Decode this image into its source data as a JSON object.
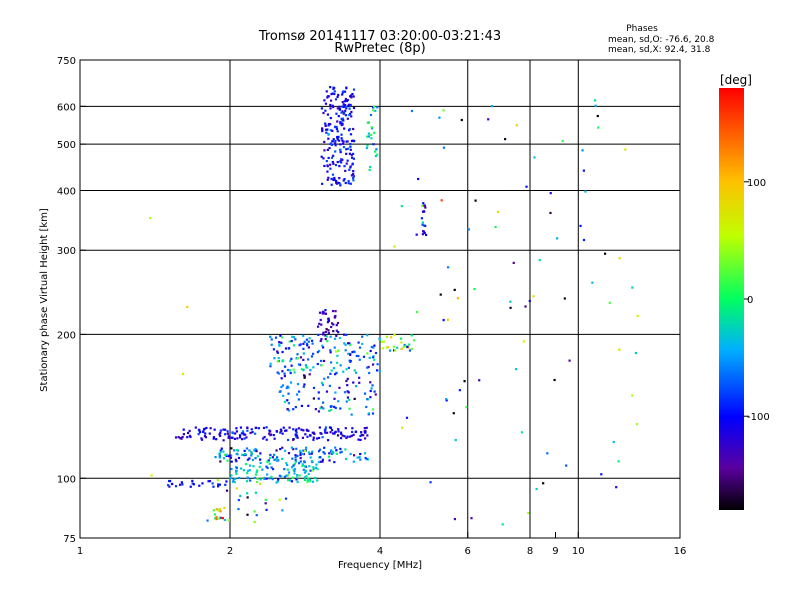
{
  "chart_data": {
    "type": "scatter",
    "title": "Tromsø 20141117 03:20:00-03:21:43",
    "subtitle": "RwPretec (8p)",
    "xlabel": "Frequency [MHz]",
    "ylabel": "Stationary phase Virtual Height [km]",
    "x_scale": "log",
    "y_scale": "log",
    "xlim": [
      1,
      16
    ],
    "ylim": [
      75,
      750
    ],
    "x_ticks": [
      1,
      2,
      4,
      6,
      8,
      9,
      10,
      16
    ],
    "x_tick_labels": [
      "1",
      "2",
      "4",
      "6",
      "8",
      "9",
      "10",
      "16"
    ],
    "x_gridlines": [
      2,
      4,
      6,
      8,
      10
    ],
    "y_ticks": [
      75,
      100,
      200,
      300,
      400,
      500,
      600,
      750
    ],
    "y_tick_labels": [
      "75",
      "100",
      "200",
      "300",
      "400",
      "500",
      "600",
      "750"
    ],
    "y_gridlines": [
      100,
      200,
      300,
      400,
      500,
      600
    ],
    "grid": true,
    "stats": {
      "header": "Phases",
      "line1": "mean, sd,O: -76.6, 20.8",
      "line2": "mean, sd,X:  92.4, 31.8"
    },
    "colorbar": {
      "unit": "[deg]",
      "range": [
        -180,
        180
      ],
      "ticks": [
        -100,
        0,
        100
      ],
      "tick_labels": [
        "-100",
        "0",
        "100"
      ]
    },
    "clusters": [
      {
        "x": [
          3.05,
          3.55
        ],
        "y": [
          410,
          660
        ],
        "phase_mean": -100,
        "phase_sd": 20,
        "count": 220
      },
      {
        "x": [
          3.75,
          3.95
        ],
        "y": [
          440,
          600
        ],
        "phase_mean": -20,
        "phase_sd": 30,
        "count": 25
      },
      {
        "x": [
          3.0,
          3.3
        ],
        "y": [
          195,
          225
        ],
        "phase_mean": -130,
        "phase_sd": 15,
        "count": 40
      },
      {
        "x": [
          2.4,
          4.0
        ],
        "y": [
          165,
          200
        ],
        "phase_mean": -60,
        "phase_sd": 40,
        "count": 160
      },
      {
        "x": [
          4.0,
          4.7
        ],
        "y": [
          185,
          200
        ],
        "phase_mean": 30,
        "phase_sd": 50,
        "count": 25
      },
      {
        "x": [
          2.5,
          4.0
        ],
        "y": [
          135,
          165
        ],
        "phase_mean": -80,
        "phase_sd": 40,
        "count": 90
      },
      {
        "x": [
          1.55,
          3.8
        ],
        "y": [
          120,
          128
        ],
        "phase_mean": -110,
        "phase_sd": 20,
        "count": 180
      },
      {
        "x": [
          1.85,
          3.8
        ],
        "y": [
          108,
          116
        ],
        "phase_mean": -70,
        "phase_sd": 40,
        "count": 140
      },
      {
        "x": [
          2.0,
          3.0
        ],
        "y": [
          98,
          108
        ],
        "phase_mean": -35,
        "phase_sd": 30,
        "count": 110
      },
      {
        "x": [
          1.5,
          2.0
        ],
        "y": [
          96,
          99
        ],
        "phase_mean": -100,
        "phase_sd": 15,
        "count": 25
      },
      {
        "x": [
          1.8,
          2.6
        ],
        "y": [
          80,
          100
        ],
        "phase_mean": -60,
        "phase_sd": 60,
        "count": 25
      },
      {
        "x": [
          1.85,
          1.95
        ],
        "y": [
          82,
          87
        ],
        "phase_mean": 80,
        "phase_sd": 60,
        "count": 12
      },
      {
        "x": [
          4.85,
          4.95
        ],
        "y": [
          320,
          380
        ],
        "phase_mean": -100,
        "phase_sd": 40,
        "count": 18
      },
      {
        "x": [
          4.2,
          14
        ],
        "y": [
          80,
          650
        ],
        "phase_mean": -40,
        "phase_sd": 90,
        "count": 90
      },
      {
        "x": [
          1.3,
          1.8
        ],
        "y": [
          100,
          420
        ],
        "phase_mean": 80,
        "phase_sd": 30,
        "count": 4
      }
    ]
  }
}
